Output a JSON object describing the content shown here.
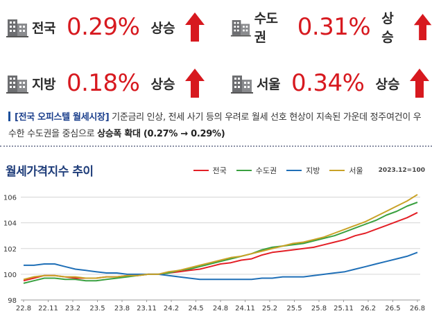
{
  "stats": [
    {
      "region": "전국",
      "value": "0.29%",
      "change": "상승",
      "icon": "building-icon",
      "arrow": "up-arrow-icon"
    },
    {
      "region": "수도권",
      "value": "0.31%",
      "change": "상승",
      "icon": "building-icon",
      "arrow": "up-arrow-icon"
    },
    {
      "region": "지방",
      "value": "0.18%",
      "change": "상승",
      "icon": "building-icon",
      "arrow": "up-arrow-icon"
    },
    {
      "region": "서울",
      "value": "0.34%",
      "change": "상승",
      "icon": "building-icon",
      "arrow": "up-arrow-icon"
    }
  ],
  "description": {
    "tag": "[전국 오피스텔 월세시장]",
    "text": " 기준금리 인상, 전세 사기 등의 우려로 월세 선호 현상이 지속된 가운데 정주여건이 우수한 수도권을 중심으로 ",
    "emphasis": "상승폭 확대",
    "trail": " (0.27% → 0.29%)"
  },
  "colors": {
    "accent_red": "#d7191f",
    "title_blue": "#1f3d7a",
    "national": "#e31f26",
    "capital": "#3aa040",
    "provincial": "#1f6fb7",
    "seoul": "#c9a227"
  },
  "chart_data": {
    "type": "line",
    "title": "월세가격지수 추이",
    "note": "2023.12=100",
    "ylim": [
      98,
      107
    ],
    "yticks": [
      98,
      100,
      102,
      104,
      106
    ],
    "grid": true,
    "legend_position": "top-right",
    "x_ticks": [
      "22.8",
      "22.11",
      "23.2",
      "23.5",
      "23.8",
      "23.11",
      "24.2",
      "24.5",
      "24.8",
      "24.11",
      "25.2",
      "25.5",
      "25.8",
      "25.11",
      "26.2",
      "26.5",
      "26.8"
    ],
    "series": [
      {
        "name": "전국",
        "color": "#e31f26",
        "values": [
          99.5,
          99.7,
          99.9,
          99.9,
          99.8,
          99.7,
          99.7,
          99.7,
          99.8,
          99.8,
          99.9,
          99.9,
          100.0,
          100.0,
          100.1,
          100.2,
          100.3,
          100.4,
          100.6,
          100.8,
          100.9,
          101.1,
          101.2,
          101.5,
          101.7,
          101.8,
          101.9,
          102.0,
          102.1,
          102.3,
          102.5,
          102.7,
          103.0,
          103.2,
          103.5,
          103.8,
          104.1,
          104.4,
          104.8
        ]
      },
      {
        "name": "수도권",
        "color": "#3aa040",
        "values": [
          99.3,
          99.5,
          99.7,
          99.7,
          99.6,
          99.6,
          99.5,
          99.5,
          99.6,
          99.7,
          99.8,
          99.9,
          100.0,
          100.0,
          100.1,
          100.3,
          100.4,
          100.6,
          100.8,
          101.0,
          101.2,
          101.4,
          101.6,
          101.9,
          102.1,
          102.2,
          102.3,
          102.4,
          102.6,
          102.8,
          103.0,
          103.3,
          103.6,
          103.9,
          104.2,
          104.6,
          104.9,
          105.3,
          105.6
        ]
      },
      {
        "name": "지방",
        "color": "#1f6fb7",
        "values": [
          100.7,
          100.7,
          100.8,
          100.8,
          100.6,
          100.4,
          100.3,
          100.2,
          100.1,
          100.1,
          100.0,
          100.0,
          100.0,
          100.0,
          99.9,
          99.8,
          99.7,
          99.6,
          99.6,
          99.6,
          99.6,
          99.6,
          99.6,
          99.7,
          99.7,
          99.8,
          99.8,
          99.8,
          99.9,
          100.0,
          100.1,
          100.2,
          100.4,
          100.6,
          100.8,
          101.0,
          101.2,
          101.4,
          101.7
        ]
      },
      {
        "name": "서울",
        "color": "#c9a227",
        "values": [
          99.6,
          99.8,
          99.9,
          99.9,
          99.8,
          99.8,
          99.7,
          99.7,
          99.8,
          99.8,
          99.9,
          99.9,
          100.0,
          100.0,
          100.2,
          100.3,
          100.5,
          100.7,
          100.9,
          101.1,
          101.3,
          101.4,
          101.6,
          101.8,
          102.0,
          102.2,
          102.4,
          102.5,
          102.7,
          102.9,
          103.2,
          103.5,
          103.8,
          104.1,
          104.5,
          104.9,
          105.3,
          105.7,
          106.2
        ]
      }
    ]
  }
}
